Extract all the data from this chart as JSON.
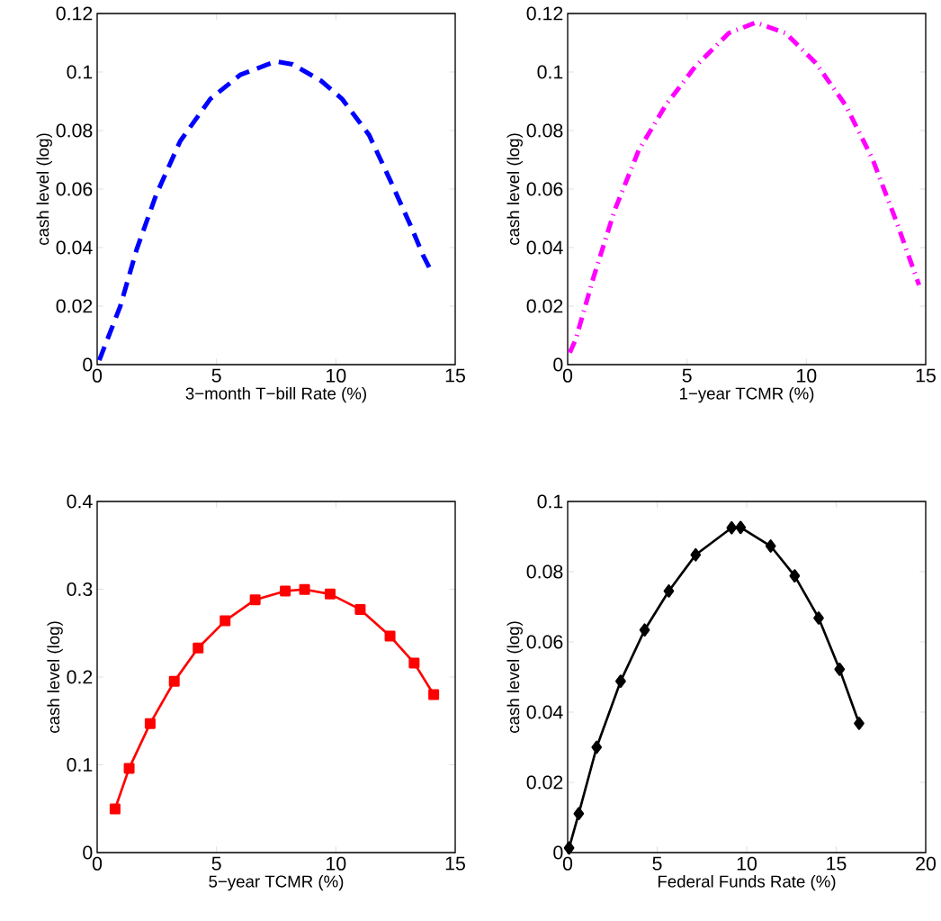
{
  "chart_data": [
    {
      "type": "line",
      "xlabel": "3−month T−bill Rate (%)",
      "ylabel": "cash level (log)",
      "xlim": [
        0,
        15
      ],
      "ylim": [
        0,
        0.12
      ],
      "xticks": [
        0,
        5,
        10,
        15
      ],
      "yticks": [
        0,
        0.02,
        0.04,
        0.06,
        0.08,
        0.1,
        0.12
      ],
      "color": "#0000ff",
      "line_style": "dashed",
      "marker": "none",
      "x": [
        0.09,
        0.97,
        1.66,
        2.47,
        3.48,
        4.74,
        5.99,
        7.31,
        7.6,
        8.19,
        9.38,
        10.26,
        11.39,
        12.27,
        13.15,
        13.65,
        14.0
      ],
      "values": [
        0.0015,
        0.02,
        0.0395,
        0.058,
        0.0764,
        0.0908,
        0.099,
        0.1031,
        0.1035,
        0.1026,
        0.097,
        0.0908,
        0.0785,
        0.0631,
        0.0472,
        0.0374,
        0.0318
      ]
    },
    {
      "type": "line",
      "xlabel": "1−year TCMR (%)",
      "ylabel": "cash level (log)",
      "xlim": [
        0,
        15
      ],
      "ylim": [
        0,
        0.12
      ],
      "xticks": [
        0,
        5,
        10,
        15
      ],
      "yticks": [
        0,
        0.02,
        0.04,
        0.06,
        0.08,
        0.1,
        0.12
      ],
      "color": "#ff00ff",
      "line_style": "dashdot",
      "marker": "none",
      "x": [
        0.09,
        0.34,
        1.09,
        1.97,
        2.98,
        4.11,
        5.36,
        6.75,
        7.88,
        9.13,
        10.39,
        11.64,
        12.77,
        13.78,
        14.72
      ],
      "values": [
        0.0041,
        0.0087,
        0.03,
        0.0528,
        0.0733,
        0.0887,
        0.102,
        0.1133,
        0.1169,
        0.1133,
        0.1031,
        0.0887,
        0.0703,
        0.0487,
        0.0272
      ]
    },
    {
      "type": "line",
      "xlabel": "5−year TCMR (%)",
      "ylabel": "cash level (log)",
      "xlim": [
        0,
        15
      ],
      "ylim": [
        0,
        0.4
      ],
      "xticks": [
        0,
        5,
        10,
        15
      ],
      "yticks": [
        0,
        0.1,
        0.2,
        0.3,
        0.4
      ],
      "color": "#ff0000",
      "line_style": "solid",
      "marker": "square",
      "x": [
        0.75,
        1.34,
        2.22,
        3.23,
        4.23,
        5.36,
        6.62,
        7.88,
        8.69,
        9.76,
        11.02,
        12.27,
        13.28,
        14.1
      ],
      "values": [
        0.0497,
        0.096,
        0.147,
        0.195,
        0.233,
        0.264,
        0.288,
        0.298,
        0.2997,
        0.2945,
        0.277,
        0.2466,
        0.216,
        0.18
      ]
    },
    {
      "type": "line",
      "xlabel": "Federal Funds Rate (%)",
      "ylabel": "cash level (log)",
      "xlim": [
        0,
        20
      ],
      "ylim": [
        0,
        0.1
      ],
      "xticks": [
        0,
        5,
        10,
        15,
        20
      ],
      "yticks": [
        0,
        0.02,
        0.04,
        0.06,
        0.08,
        0.1
      ],
      "color": "#000000",
      "line_style": "solid",
      "marker": "diamond",
      "x": [
        0.08,
        0.62,
        1.62,
        2.96,
        4.3,
        5.65,
        7.15,
        9.16,
        9.66,
        11.34,
        12.68,
        14.02,
        15.19,
        16.28
      ],
      "values": [
        0.0013,
        0.0111,
        0.03,
        0.0488,
        0.0634,
        0.0745,
        0.0848,
        0.0925,
        0.0926,
        0.0873,
        0.0788,
        0.0668,
        0.0522,
        0.0368
      ]
    }
  ]
}
